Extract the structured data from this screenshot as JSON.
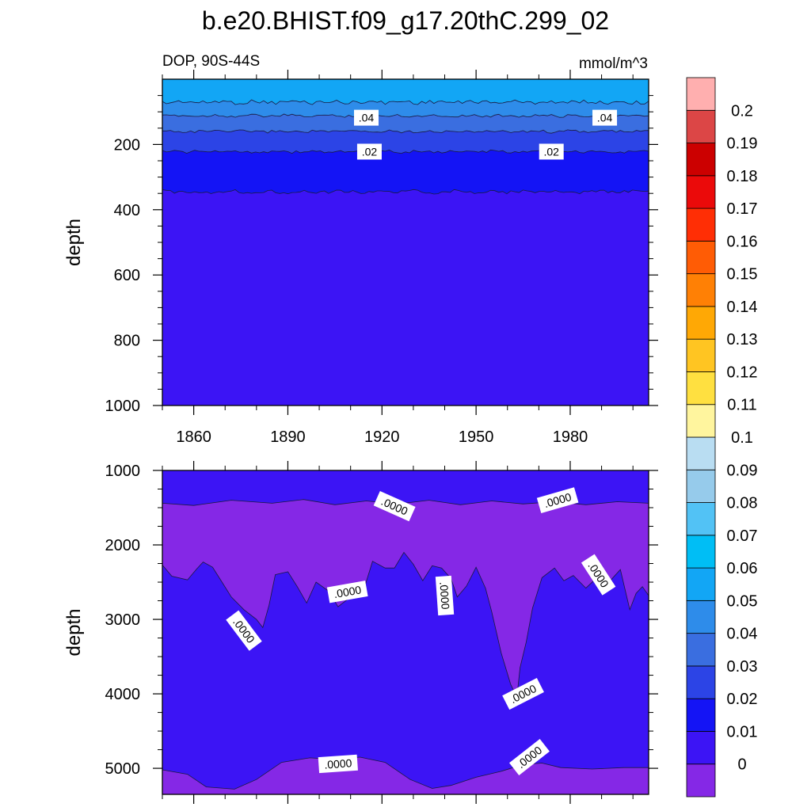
{
  "title": "b.e20.BHIST.f09_g17.20thC.299_02",
  "left_label": "DOP, 90S-44S",
  "right_label": "mmol/m^3",
  "colors": {
    "c0": "#8528e6",
    "c1": "#3c14f5",
    "c2": "#1414f5",
    "c3": "#2c44e6",
    "c4": "#3a6ee0",
    "c5": "#2e8cea",
    "c6": "#12a6f5"
  },
  "chart_data": [
    {
      "type": "heatmap",
      "panel": "top",
      "ylabel": "depth",
      "xlim": [
        1850,
        2005
      ],
      "ylim": [
        0,
        1000
      ],
      "y_inverted": true,
      "xticks": [
        1860,
        1890,
        1920,
        1950,
        1980
      ],
      "yticks": [
        200,
        400,
        600,
        800,
        1000
      ],
      "boundaries": [
        {
          "contour": 0.05,
          "depth": 70,
          "amp": 6
        },
        {
          "contour": 0.04,
          "depth": 112,
          "amp": 4
        },
        {
          "contour": 0.04,
          "depth": 160,
          "amp": 4
        },
        {
          "contour": 0.02,
          "depth": 222,
          "amp": 4
        },
        {
          "contour": 0.01,
          "depth": 345,
          "amp": 5
        }
      ],
      "fills": [
        "c6",
        "c5",
        "c4",
        "c3",
        "c2",
        "c1"
      ],
      "contour_labels": [
        {
          "text": ".04",
          "x": 1915,
          "y": 118
        },
        {
          "text": ".04",
          "x": 1991,
          "y": 118
        },
        {
          "text": ".02",
          "x": 1916,
          "y": 222
        },
        {
          "text": ".02",
          "x": 1974,
          "y": 222
        }
      ]
    },
    {
      "type": "heatmap",
      "panel": "bottom",
      "ylabel": "depth",
      "xlim": [
        1850,
        2005
      ],
      "ylim": [
        1000,
        5350
      ],
      "y_inverted": true,
      "xticks": [
        1860,
        1890,
        1920,
        1950,
        1980
      ],
      "yticks": [
        1000,
        2000,
        3000,
        4000,
        5000
      ],
      "upper_boundary": [
        [
          1850,
          1440
        ],
        [
          1860,
          1470
        ],
        [
          1872,
          1400
        ],
        [
          1885,
          1440
        ],
        [
          1895,
          1390
        ],
        [
          1905,
          1460
        ],
        [
          1915,
          1410
        ],
        [
          1925,
          1450
        ],
        [
          1935,
          1400
        ],
        [
          1945,
          1460
        ],
        [
          1955,
          1410
        ],
        [
          1965,
          1450
        ],
        [
          1975,
          1420
        ],
        [
          1985,
          1460
        ],
        [
          1995,
          1420
        ],
        [
          2005,
          1440
        ]
      ],
      "lower_boundary": [
        [
          1850,
          5020
        ],
        [
          1858,
          5080
        ],
        [
          1864,
          5250
        ],
        [
          1873,
          5280
        ],
        [
          1880,
          5150
        ],
        [
          1888,
          4920
        ],
        [
          1897,
          4860
        ],
        [
          1905,
          4880
        ],
        [
          1913,
          4850
        ],
        [
          1921,
          4920
        ],
        [
          1929,
          5150
        ],
        [
          1936,
          5270
        ],
        [
          1942,
          5230
        ],
        [
          1950,
          5120
        ],
        [
          1958,
          5040
        ],
        [
          1965,
          4950
        ],
        [
          1971,
          4930
        ],
        [
          1977,
          4990
        ],
        [
          1987,
          5010
        ],
        [
          1997,
          4990
        ],
        [
          2005,
          4990
        ]
      ],
      "mid_boundary": [
        [
          1850,
          2270
        ],
        [
          1853,
          2420
        ],
        [
          1858,
          2470
        ],
        [
          1861,
          2320
        ],
        [
          1863,
          2230
        ],
        [
          1866,
          2300
        ],
        [
          1869,
          2500
        ],
        [
          1872,
          2700
        ],
        [
          1876,
          2870
        ],
        [
          1880,
          3000
        ],
        [
          1882,
          3110
        ],
        [
          1884,
          2810
        ],
        [
          1886,
          2400
        ],
        [
          1890,
          2360
        ],
        [
          1893,
          2560
        ],
        [
          1896,
          2780
        ],
        [
          1899,
          2500
        ],
        [
          1903,
          2620
        ],
        [
          1906,
          2830
        ],
        [
          1910,
          2700
        ],
        [
          1914,
          2630
        ],
        [
          1917,
          2220
        ],
        [
          1921,
          2310
        ],
        [
          1924,
          2310
        ],
        [
          1927,
          2100
        ],
        [
          1930,
          2260
        ],
        [
          1933,
          2480
        ],
        [
          1936,
          2280
        ],
        [
          1939,
          2310
        ],
        [
          1942,
          2450
        ],
        [
          1944,
          2700
        ],
        [
          1947,
          2550
        ],
        [
          1950,
          2300
        ],
        [
          1953,
          2580
        ],
        [
          1955,
          2900
        ],
        [
          1958,
          3450
        ],
        [
          1961,
          3870
        ],
        [
          1963,
          4050
        ],
        [
          1964,
          3650
        ],
        [
          1966,
          3300
        ],
        [
          1968,
          2850
        ],
        [
          1971,
          2440
        ],
        [
          1975,
          2310
        ],
        [
          1978,
          2480
        ],
        [
          1981,
          2410
        ],
        [
          1985,
          2580
        ],
        [
          1989,
          2420
        ],
        [
          1993,
          2470
        ],
        [
          1996,
          2330
        ],
        [
          1999,
          2870
        ],
        [
          2001,
          2650
        ],
        [
          2003,
          2560
        ],
        [
          2005,
          2680
        ]
      ],
      "contour_labels": [
        {
          "text": ".0000",
          "x": 1924,
          "y": 1480,
          "angle": 24
        },
        {
          "text": ".0000",
          "x": 1976,
          "y": 1400,
          "angle": -16
        },
        {
          "text": ".0000",
          "x": 1989,
          "y": 2400,
          "angle": 57
        },
        {
          "text": ".0000",
          "x": 1909,
          "y": 2630,
          "angle": -10
        },
        {
          "text": ".0000",
          "x": 1940,
          "y": 2680,
          "angle": 86
        },
        {
          "text": ".0000",
          "x": 1876,
          "y": 3150,
          "angle": 53
        },
        {
          "text": ".0000",
          "x": 1965,
          "y": 4000,
          "angle": -27
        },
        {
          "text": ".0000",
          "x": 1906,
          "y": 4940,
          "angle": -4
        },
        {
          "text": ".0000",
          "x": 1967,
          "y": 4850,
          "angle": -38
        }
      ]
    }
  ],
  "colorbar": {
    "levels": [
      "0",
      "0.01",
      "0.02",
      "0.03",
      "0.04",
      "0.05",
      "0.06",
      "0.07",
      "0.08",
      "0.09",
      "0.1",
      "0.11",
      "0.12",
      "0.13",
      "0.14",
      "0.15",
      "0.16",
      "0.17",
      "0.18",
      "0.19",
      "0.2"
    ],
    "boxes": [
      "#8528e6",
      "#3c14f5",
      "#1414f5",
      "#2c44e6",
      "#3a6ee0",
      "#2e8cea",
      "#12a6f5",
      "#00bef5",
      "#52c2f5",
      "#96cbeb",
      "#b9ddf2",
      "#fff59e",
      "#ffe040",
      "#ffc522",
      "#ffa805",
      "#ff8005",
      "#ff5c05",
      "#ff2e05",
      "#eb0a0a",
      "#cc0000",
      "#dc4646",
      "#ffafaf"
    ]
  }
}
